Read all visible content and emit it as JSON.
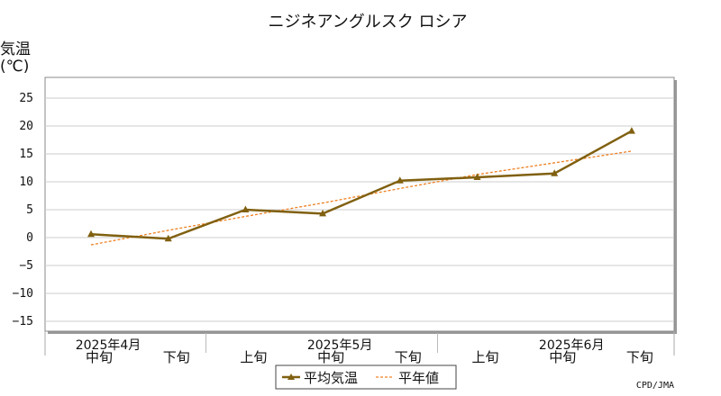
{
  "chart_data": {
    "type": "line",
    "title": "ニジネアングルスク ロシア",
    "ylabel": "気温",
    "yunit": "(℃)",
    "ylim": [
      -17,
      29
    ],
    "yticks": [
      25,
      20,
      15,
      10,
      5,
      0,
      -5,
      -10,
      -15
    ],
    "categories": [
      "中旬",
      "下旬",
      "上旬",
      "中旬",
      "下旬",
      "上旬",
      "中旬",
      "下旬"
    ],
    "month_labels": [
      {
        "label": "2025年4月",
        "index": 0
      },
      {
        "label": "2025年5月",
        "index": 3
      },
      {
        "label": "2025年6月",
        "index": 6
      }
    ],
    "series": [
      {
        "name": "平均気温",
        "values": [
          0.6,
          -0.2,
          5.0,
          4.3,
          10.2,
          10.8,
          11.5,
          19.1
        ],
        "color": "#806010",
        "style": "solid",
        "marker": "triangle"
      },
      {
        "name": "平年値",
        "values": [
          -1.3,
          1.3,
          3.8,
          6.2,
          8.8,
          11.3,
          13.4,
          15.5
        ],
        "color": "#f08020",
        "style": "dashed"
      }
    ],
    "grid": true,
    "legend_position": "bottom-center",
    "credit": "CPD/JMA"
  }
}
